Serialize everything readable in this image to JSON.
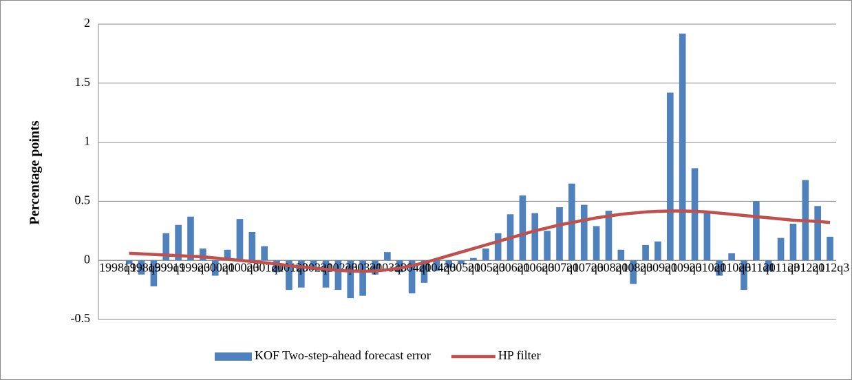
{
  "chart_data": {
    "type": "bar",
    "y_label": "Percentage points",
    "categories": [
      "1998q1",
      null,
      "1998q3",
      null,
      "1999q1",
      null,
      "1999q3",
      null,
      "2000q1",
      null,
      "2000q3",
      null,
      "2001q1",
      null,
      "2001q3",
      null,
      "2002q1",
      null,
      "2002q3",
      null,
      "2003q1",
      null,
      "2003q3",
      null,
      "2004q1",
      null,
      "2004q3",
      null,
      "2005q1",
      null,
      "2005q3",
      null,
      "2006q1",
      null,
      "2006q3",
      null,
      "2007q1",
      null,
      "2007q3",
      null,
      "2008q1",
      null,
      "2008q3",
      null,
      "2009q1",
      null,
      "2009q3",
      null,
      "2010q1",
      null,
      "2010q3",
      null,
      "2011q1",
      null,
      "2011q3",
      null,
      "2012q1",
      null,
      "2012q3",
      null
    ],
    "series": [
      {
        "name": "KOF Two-step-ahead forecast error",
        "type": "bar",
        "color": "#4f81bd",
        "values": [
          null,
          null,
          -0.03,
          -0.12,
          -0.22,
          0.23,
          0.3,
          0.37,
          0.1,
          -0.13,
          0.09,
          0.35,
          0.24,
          0.12,
          -0.1,
          -0.25,
          -0.23,
          -0.08,
          -0.23,
          -0.25,
          -0.32,
          -0.3,
          -0.12,
          0.07,
          -0.1,
          -0.28,
          -0.19,
          -0.09,
          -0.06,
          -0.03,
          0.02,
          0.1,
          0.23,
          0.39,
          0.55,
          0.4,
          0.25,
          0.45,
          0.65,
          0.47,
          0.29,
          0.42,
          0.09,
          -0.2,
          0.13,
          0.16,
          1.42,
          1.92,
          0.78,
          0.4,
          -0.13,
          0.06,
          -0.25,
          0.5,
          -0.09,
          0.19,
          0.31,
          0.68,
          0.46,
          0.2
        ]
      },
      {
        "name": "HP filter",
        "type": "line",
        "color": "#c0504d",
        "values": [
          null,
          null,
          0.06,
          0.055,
          0.05,
          0.045,
          0.04,
          0.035,
          0.03,
          0.02,
          0.01,
          0.0,
          -0.01,
          -0.02,
          -0.03,
          -0.045,
          -0.055,
          -0.065,
          -0.075,
          -0.085,
          -0.09,
          -0.092,
          -0.09,
          -0.08,
          -0.065,
          -0.045,
          -0.02,
          0.01,
          0.04,
          0.07,
          0.1,
          0.13,
          0.16,
          0.19,
          0.22,
          0.25,
          0.275,
          0.3,
          0.32,
          0.34,
          0.36,
          0.375,
          0.39,
          0.4,
          0.41,
          0.415,
          0.418,
          0.418,
          0.415,
          0.41,
          0.4,
          0.39,
          0.38,
          0.37,
          0.36,
          0.35,
          0.34,
          0.335,
          0.33,
          0.32
        ]
      }
    ],
    "ylim": [
      -0.5,
      2
    ],
    "yticks": [
      -0.5,
      0,
      0.5,
      1,
      1.5,
      2
    ],
    "grid": true,
    "legend": "bottom"
  }
}
